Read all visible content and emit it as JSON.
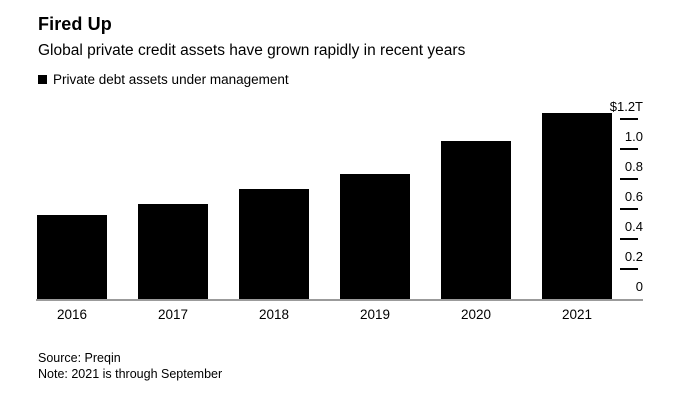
{
  "colors": {
    "background": "#ffffff",
    "bar": "#000000",
    "axis_line": "#9b9b9b",
    "tick": "#000000",
    "text": "#000000"
  },
  "header": {
    "title": "Fired Up",
    "subtitle": "Global private credit assets have grown rapidly in recent years"
  },
  "legend": {
    "swatch_icon": "black-square",
    "label": "Private debt assets under management"
  },
  "chart_data": {
    "type": "bar",
    "title": "Fired Up",
    "subtitle": "Global private credit assets have grown rapidly in recent years",
    "series_name": "Private debt assets under management",
    "unit": "USD trillions",
    "categories": [
      "2016",
      "2017",
      "2018",
      "2019",
      "2020",
      "2021"
    ],
    "values": [
      0.56,
      0.63,
      0.73,
      0.83,
      1.05,
      1.24
    ],
    "xlabel": "",
    "ylabel": "",
    "ylim": [
      0,
      1.2
    ],
    "grid": false,
    "legend_position": "top-left",
    "y_axis_side": "right",
    "y_ticks": [
      {
        "label": "$1.2T",
        "value": 1.2
      },
      {
        "label": "1.0",
        "value": 1.0
      },
      {
        "label": "0.8",
        "value": 0.8
      },
      {
        "label": "0.6",
        "value": 0.6
      },
      {
        "label": "0.4",
        "value": 0.4
      },
      {
        "label": "0.2",
        "value": 0.2
      },
      {
        "label": "0",
        "value": 0
      }
    ]
  },
  "footer": {
    "source": "Source: Preqin",
    "note": "Note: 2021 is through September"
  }
}
